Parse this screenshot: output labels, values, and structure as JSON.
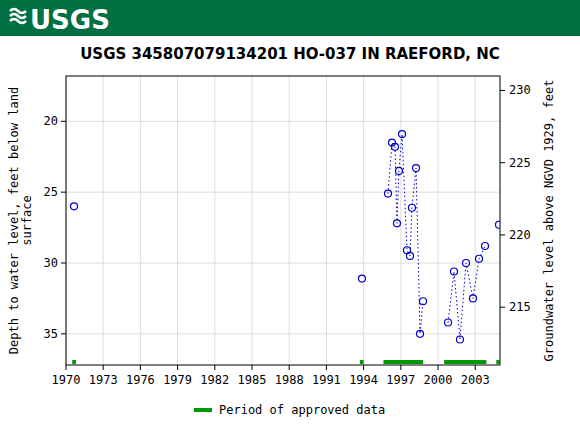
{
  "header": {
    "logo": "USGS"
  },
  "chart_data": {
    "type": "line",
    "title": "USGS 345807079134201 HO-037 IN RAEFORD, NC",
    "y_label": [
      "Depth to water level, feet below land",
      "surface"
    ],
    "y2_label": "Groundwater level above NGVD 1929, feet",
    "xlim": [
      1970,
      2005
    ],
    "xticks": [
      1970,
      1973,
      1976,
      1979,
      1982,
      1985,
      1988,
      1991,
      1994,
      1997,
      2000,
      2003
    ],
    "ylim": [
      37.2,
      16.8
    ],
    "yticks": [
      20,
      25,
      30,
      35
    ],
    "y2lim": [
      211.0,
      231.0
    ],
    "y2ticks": [
      215,
      220,
      225,
      230
    ],
    "grid": true,
    "series": [
      {
        "name": "Depth to water level",
        "color": "#0000cc",
        "marker": "circle",
        "line_style": "dotted",
        "x": [
          1970.65,
          null,
          1993.87,
          null,
          1995.97,
          1996.29,
          1996.53,
          1996.69,
          1996.85,
          1997.1,
          1997.5,
          1997.74,
          1997.9,
          1998.23,
          1998.55,
          1998.79,
          null,
          2000.81,
          2001.29,
          2001.77,
          2002.26,
          2002.82,
          2003.31,
          2003.79,
          null,
          2004.92
        ],
        "values": [
          26.0,
          null,
          31.1,
          null,
          25.1,
          21.5,
          21.8,
          27.2,
          23.5,
          20.9,
          29.1,
          29.5,
          26.1,
          23.3,
          35.0,
          32.7,
          null,
          34.2,
          30.6,
          35.4,
          30.0,
          32.5,
          29.7,
          28.8,
          null,
          27.3
        ]
      }
    ],
    "approved_periods": {
      "name": "Period of approved data",
      "color": "#009900",
      "ranges": [
        [
          1970.5,
          1970.8
        ],
        [
          1993.7,
          1994.0
        ],
        [
          1995.6,
          1998.8
        ],
        [
          2000.5,
          2003.9
        ],
        [
          2004.7,
          2005.0
        ]
      ]
    }
  }
}
